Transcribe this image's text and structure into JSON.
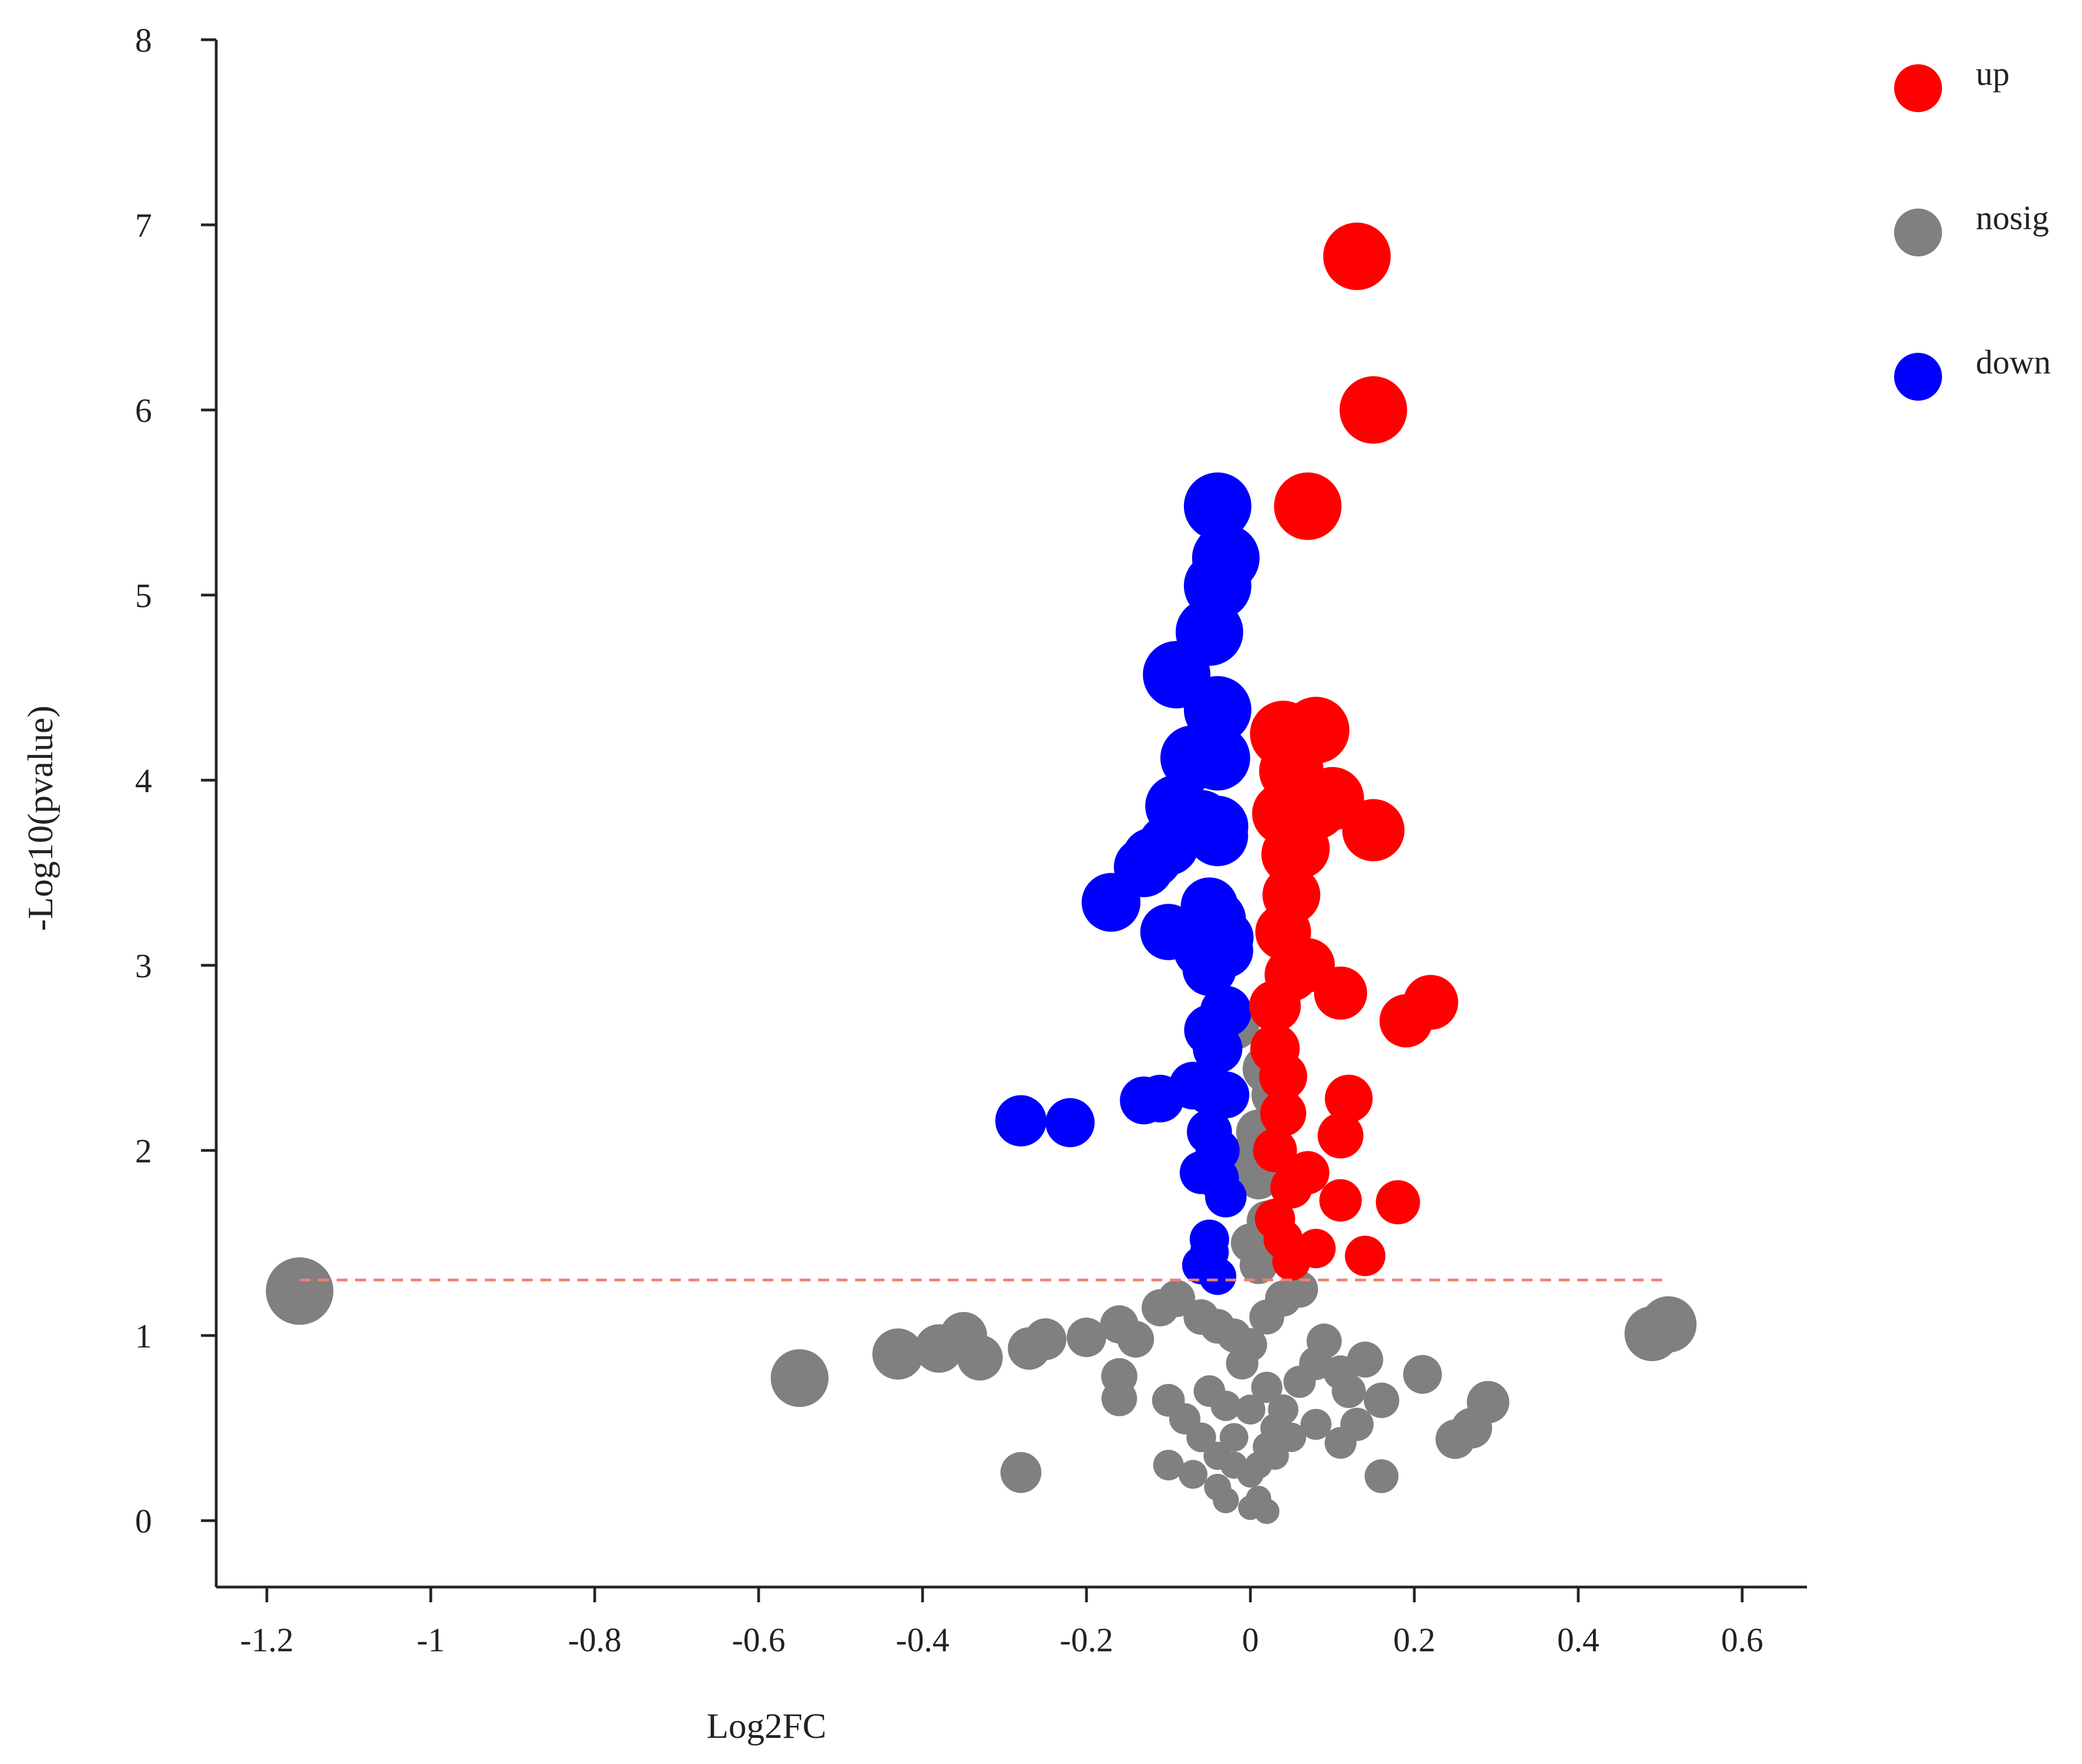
{
  "chart_data": {
    "type": "scatter",
    "title": "",
    "xlabel": "Log2FC",
    "ylabel": "-Log10(pvalue)",
    "xlim": [
      -1.25,
      0.68
    ],
    "ylim": [
      -0.35,
      8.0
    ],
    "xticks": [
      -1.2,
      -1,
      -0.8,
      -0.6,
      -0.4,
      -0.2,
      0,
      0.2,
      0.4,
      0.6
    ],
    "xtick_labels": [
      "-1.2",
      "-1",
      "-0.8",
      "-0.6",
      "-0.4",
      "-0.2",
      "0",
      "0.2",
      "0.4",
      "0.6"
    ],
    "yticks": [
      0,
      1,
      2,
      3,
      4,
      5,
      6,
      7,
      8
    ],
    "ytick_labels": [
      "0",
      "1",
      "2",
      "3",
      "4",
      "5",
      "6",
      "7",
      "8"
    ],
    "grid": false,
    "legend_position": "top-right",
    "threshold": {
      "y": 1.3,
      "x_range": [
        -1.16,
        0.51
      ],
      "color": "#f08070",
      "style": "dashed"
    },
    "series": [
      {
        "name": "up",
        "color": "#ff0000",
        "points": [
          [
            0.13,
            6.83
          ],
          [
            0.15,
            6.0
          ],
          [
            0.07,
            5.48
          ],
          [
            0.08,
            4.27
          ],
          [
            0.04,
            4.25
          ],
          [
            0.05,
            4.05
          ],
          [
            0.1,
            3.9
          ],
          [
            0.08,
            3.85
          ],
          [
            0.04,
            3.82
          ],
          [
            0.15,
            3.73
          ],
          [
            0.06,
            3.63
          ],
          [
            0.05,
            3.6
          ],
          [
            0.05,
            3.38
          ],
          [
            0.04,
            3.18
          ],
          [
            0.07,
            3.0
          ],
          [
            0.05,
            2.95
          ],
          [
            0.11,
            2.85
          ],
          [
            0.03,
            2.78
          ],
          [
            0.22,
            2.8
          ],
          [
            0.19,
            2.7
          ],
          [
            0.03,
            2.55
          ],
          [
            0.04,
            2.4
          ],
          [
            0.12,
            2.28
          ],
          [
            0.04,
            2.2
          ],
          [
            0.11,
            2.08
          ],
          [
            0.03,
            2.0
          ],
          [
            0.07,
            1.88
          ],
          [
            0.05,
            1.8
          ],
          [
            0.11,
            1.73
          ],
          [
            0.18,
            1.72
          ],
          [
            0.03,
            1.63
          ],
          [
            0.04,
            1.52
          ],
          [
            0.08,
            1.47
          ],
          [
            0.14,
            1.43
          ],
          [
            0.05,
            1.4
          ]
        ]
      },
      {
        "name": "nosig",
        "color": "#808080",
        "points": [
          [
            -1.16,
            1.24
          ],
          [
            0.49,
            1.01
          ],
          [
            0.51,
            1.06
          ],
          [
            -0.55,
            0.77
          ],
          [
            -0.43,
            0.9
          ],
          [
            -0.35,
            1.0
          ],
          [
            -0.38,
            0.93
          ],
          [
            -0.33,
            0.88
          ],
          [
            -0.27,
            0.93
          ],
          [
            -0.25,
            0.98
          ],
          [
            -0.2,
            0.99
          ],
          [
            -0.16,
            1.06
          ],
          [
            -0.14,
            0.98
          ],
          [
            -0.11,
            1.15
          ],
          [
            -0.09,
            1.2
          ],
          [
            -0.06,
            1.1
          ],
          [
            -0.04,
            1.05
          ],
          [
            -0.02,
            1.0
          ],
          [
            0.0,
            0.95
          ],
          [
            0.02,
            1.1
          ],
          [
            0.04,
            1.2
          ],
          [
            0.06,
            1.25
          ],
          [
            -0.16,
            0.78
          ],
          [
            -0.16,
            0.66
          ],
          [
            -0.1,
            0.65
          ],
          [
            -0.08,
            0.55
          ],
          [
            -0.06,
            0.45
          ],
          [
            -0.04,
            0.35
          ],
          [
            -0.02,
            0.3
          ],
          [
            0.0,
            0.25
          ],
          [
            0.02,
            0.4
          ],
          [
            0.04,
            0.6
          ],
          [
            0.06,
            0.75
          ],
          [
            0.08,
            0.85
          ],
          [
            0.09,
            0.97
          ],
          [
            0.11,
            0.8
          ],
          [
            0.12,
            0.7
          ],
          [
            0.14,
            0.87
          ],
          [
            0.16,
            0.65
          ],
          [
            0.13,
            0.52
          ],
          [
            0.11,
            0.42
          ],
          [
            0.08,
            0.52
          ],
          [
            0.05,
            0.45
          ],
          [
            0.21,
            0.79
          ],
          [
            0.29,
            0.64
          ],
          [
            0.27,
            0.5
          ],
          [
            0.25,
            0.44
          ],
          [
            0.16,
            0.24
          ],
          [
            -0.28,
            0.26
          ],
          [
            -0.1,
            0.3
          ],
          [
            -0.07,
            0.25
          ],
          [
            -0.04,
            0.18
          ],
          [
            -0.03,
            0.11
          ],
          [
            0.0,
            0.07
          ],
          [
            0.02,
            0.05
          ],
          [
            0.01,
            0.12
          ],
          [
            -0.02,
            0.45
          ],
          [
            0.0,
            0.6
          ],
          [
            0.02,
            0.72
          ],
          [
            -0.01,
            0.85
          ],
          [
            0.03,
            0.5
          ],
          [
            -0.05,
            0.7
          ],
          [
            -0.03,
            0.62
          ],
          [
            0.01,
            0.3
          ],
          [
            0.03,
            0.35
          ],
          [
            0.02,
            2.44
          ],
          [
            0.03,
            2.3
          ],
          [
            0.01,
            2.1
          ],
          [
            0.01,
            1.85
          ],
          [
            0.02,
            1.62
          ],
          [
            0.01,
            1.38
          ],
          [
            -0.02,
            2.68
          ],
          [
            -0.01,
            1.95
          ],
          [
            0.0,
            1.5
          ]
        ]
      },
      {
        "name": "down",
        "color": "#0000ff",
        "points": [
          [
            -0.04,
            5.48
          ],
          [
            -0.03,
            5.2
          ],
          [
            -0.04,
            5.05
          ],
          [
            -0.05,
            4.8
          ],
          [
            -0.09,
            4.57
          ],
          [
            -0.04,
            4.38
          ],
          [
            -0.07,
            4.12
          ],
          [
            -0.04,
            4.12
          ],
          [
            -0.09,
            3.86
          ],
          [
            -0.06,
            3.78
          ],
          [
            -0.04,
            3.75
          ],
          [
            -0.04,
            3.7
          ],
          [
            -0.1,
            3.65
          ],
          [
            -0.12,
            3.58
          ],
          [
            -0.13,
            3.53
          ],
          [
            -0.17,
            3.34
          ],
          [
            -0.05,
            3.32
          ],
          [
            -0.04,
            3.25
          ],
          [
            -0.1,
            3.18
          ],
          [
            -0.03,
            3.15
          ],
          [
            -0.06,
            3.08
          ],
          [
            -0.03,
            3.08
          ],
          [
            -0.05,
            2.98
          ],
          [
            -0.03,
            2.75
          ],
          [
            -0.05,
            2.65
          ],
          [
            -0.04,
            2.55
          ],
          [
            -0.07,
            2.35
          ],
          [
            -0.05,
            2.32
          ],
          [
            -0.03,
            2.3
          ],
          [
            -0.11,
            2.28
          ],
          [
            -0.13,
            2.27
          ],
          [
            -0.28,
            2.16
          ],
          [
            -0.22,
            2.15
          ],
          [
            -0.05,
            2.1
          ],
          [
            -0.04,
            2.0
          ],
          [
            -0.06,
            1.88
          ],
          [
            -0.04,
            1.85
          ],
          [
            -0.03,
            1.75
          ],
          [
            -0.05,
            1.52
          ],
          [
            -0.05,
            1.45
          ],
          [
            -0.06,
            1.38
          ],
          [
            -0.04,
            1.32
          ]
        ]
      }
    ]
  }
}
